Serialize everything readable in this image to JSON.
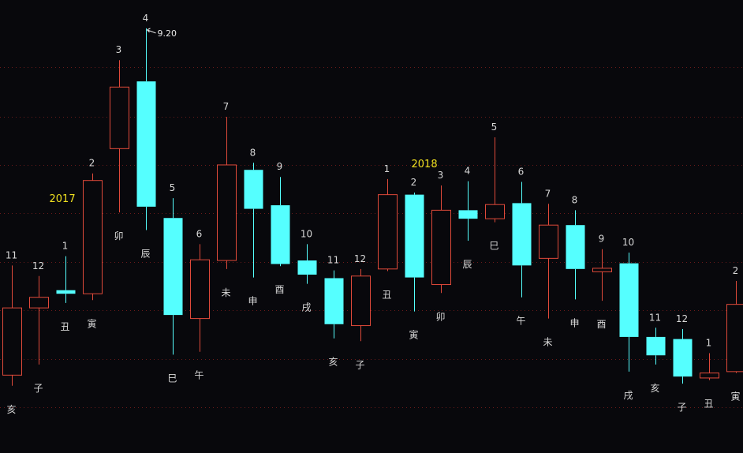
{
  "chart_data": {
    "type": "candlestick",
    "colors": {
      "up": "#e04a3a",
      "down": "#55ffff",
      "background": "#08080c",
      "grid": "#6a1a1a",
      "year_text": "#f0e020",
      "text": "#d8d8d8"
    },
    "ylim": [
      3.2,
      9.6
    ],
    "grid_levels": [
      8.65,
      7.95,
      7.27,
      6.59,
      5.9,
      5.22,
      4.53,
      3.85
    ],
    "years": [
      {
        "label": "2017",
        "at_index": 1
      },
      {
        "label": "2018",
        "at_index": 15
      }
    ],
    "peak_annotation": {
      "at_index": 5,
      "value": 9.2,
      "label": "9.20"
    },
    "candles": [
      {
        "month": "11",
        "branch": "亥",
        "open": 4.3,
        "close": 5.25,
        "high": 5.85,
        "low": 4.15
      },
      {
        "month": "12",
        "branch": "子",
        "open": 5.25,
        "close": 5.4,
        "high": 5.7,
        "low": 4.45
      },
      {
        "month": "1",
        "branch": "丑",
        "open": 5.5,
        "close": 5.45,
        "high": 5.98,
        "low": 5.32
      },
      {
        "month": "2",
        "branch": "寅",
        "open": 5.45,
        "close": 7.05,
        "high": 7.15,
        "low": 5.36
      },
      {
        "month": "3",
        "branch": "卯",
        "open": 7.5,
        "close": 8.37,
        "high": 8.75,
        "low": 6.6
      },
      {
        "month": "4",
        "branch": "辰",
        "open": 8.45,
        "close": 6.68,
        "high": 9.2,
        "low": 6.35
      },
      {
        "month": "5",
        "branch": "巳",
        "open": 6.52,
        "close": 5.15,
        "high": 6.8,
        "low": 4.59
      },
      {
        "month": "6",
        "branch": "午",
        "open": 5.1,
        "close": 5.93,
        "high": 6.15,
        "low": 4.63
      },
      {
        "month": "7",
        "branch": "未",
        "open": 5.92,
        "close": 7.27,
        "high": 7.95,
        "low": 5.8
      },
      {
        "month": "8",
        "branch": "申",
        "open": 7.2,
        "close": 6.65,
        "high": 7.3,
        "low": 5.68
      },
      {
        "month": "9",
        "branch": "酉",
        "open": 6.7,
        "close": 5.87,
        "high": 7.1,
        "low": 5.84
      },
      {
        "month": "10",
        "branch": "戌",
        "open": 5.92,
        "close": 5.72,
        "high": 6.15,
        "low": 5.59
      },
      {
        "month": "11",
        "branch": "亥",
        "open": 5.67,
        "close": 5.02,
        "high": 5.78,
        "low": 4.82
      },
      {
        "month": "12",
        "branch": "子",
        "open": 5.0,
        "close": 5.7,
        "high": 5.8,
        "low": 4.78
      },
      {
        "month": "1",
        "branch": "丑",
        "open": 5.8,
        "close": 6.85,
        "high": 7.07,
        "low": 5.77
      },
      {
        "month": "2",
        "branch": "寅",
        "open": 6.85,
        "close": 5.68,
        "high": 6.88,
        "low": 5.2
      },
      {
        "month": "3",
        "branch": "卯",
        "open": 5.58,
        "close": 6.63,
        "high": 6.98,
        "low": 5.46
      },
      {
        "month": "4",
        "branch": "辰",
        "open": 6.63,
        "close": 6.51,
        "high": 7.04,
        "low": 6.2
      },
      {
        "month": "5",
        "branch": "巳",
        "open": 6.51,
        "close": 6.71,
        "high": 7.66,
        "low": 6.46
      },
      {
        "month": "6",
        "branch": "午",
        "open": 6.73,
        "close": 5.85,
        "high": 7.03,
        "low": 5.4
      },
      {
        "month": "7",
        "branch": "未",
        "open": 5.95,
        "close": 6.42,
        "high": 6.72,
        "low": 5.1
      },
      {
        "month": "8",
        "branch": "申",
        "open": 6.42,
        "close": 5.8,
        "high": 6.63,
        "low": 5.37
      },
      {
        "month": "9",
        "branch": "酉",
        "open": 5.76,
        "close": 5.81,
        "high": 6.08,
        "low": 5.35
      },
      {
        "month": "10",
        "branch": "戌",
        "open": 5.88,
        "close": 4.84,
        "high": 6.03,
        "low": 4.35
      },
      {
        "month": "11",
        "branch": "亥",
        "open": 4.84,
        "close": 4.58,
        "high": 4.97,
        "low": 4.45
      },
      {
        "month": "12",
        "branch": "子",
        "open": 4.81,
        "close": 4.28,
        "high": 4.95,
        "low": 4.18
      },
      {
        "month": "1",
        "branch": "丑",
        "open": 4.26,
        "close": 4.33,
        "high": 4.61,
        "low": 4.23
      },
      {
        "month": "2",
        "branch": "寅",
        "open": 4.35,
        "close": 5.3,
        "high": 5.63,
        "low": 4.33
      }
    ]
  }
}
